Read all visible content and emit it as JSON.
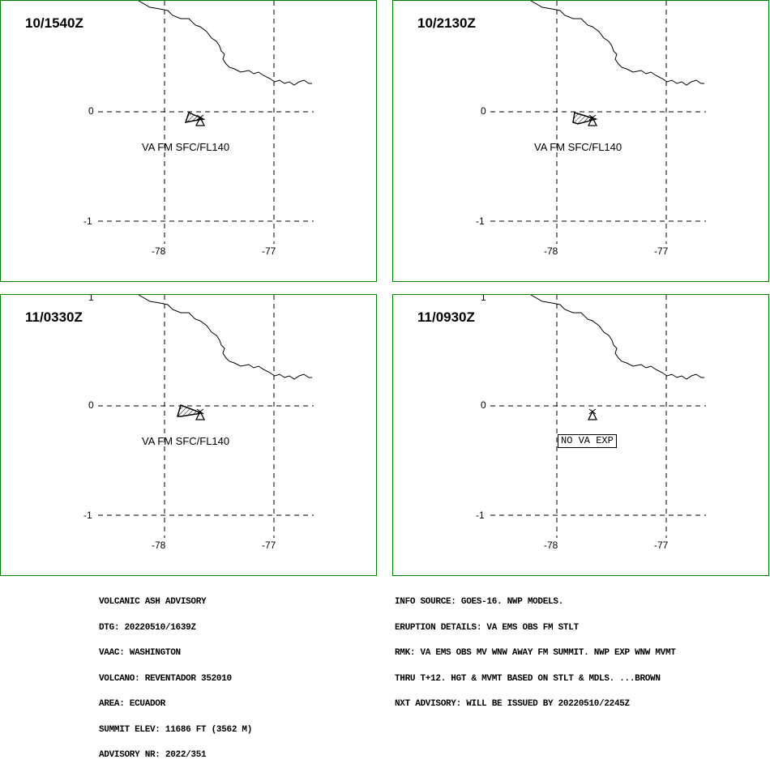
{
  "panels": [
    {
      "time": "10/1540Z",
      "label": "VA FM SFC/FL140",
      "type": "ash"
    },
    {
      "time": "10/2130Z",
      "label": "VA FM SFC/FL140",
      "type": "ash"
    },
    {
      "time": "11/0330Z",
      "label": "VA FM SFC/FL140",
      "type": "ash"
    },
    {
      "time": "11/0930Z",
      "label": "NO VA EXP",
      "type": "none"
    }
  ],
  "axes": {
    "lat_labels": [
      "1",
      "0",
      "-1"
    ],
    "lon_labels": [
      "-78",
      "-77"
    ]
  },
  "advisory_left": [
    "VOLCANIC ASH ADVISORY",
    "DTG: 20220510/1639Z",
    "VAAC: WASHINGTON",
    "VOLCANO: REVENTADOR 352010",
    "AREA: ECUADOR",
    "SUMMIT ELEV: 11686 FT (3562 M)",
    "ADVISORY NR: 2022/351"
  ],
  "advisory_right": [
    "INFO SOURCE: GOES-16. NWP MODELS.",
    "ERUPTION DETAILS: VA EMS OBS FM STLT",
    "RMK: VA EMS OBS MV WNW AWAY FM SUMMIT. NWP EXP WNW MVMT",
    "THRU T+12. HGT & MVMT BASED ON STLT & MDLS. ...BROWN",
    "NXT ADVISORY: WILL BE ISSUED BY 20220510/2245Z"
  ],
  "colors": {
    "border": "#008000",
    "map": "#000000"
  }
}
